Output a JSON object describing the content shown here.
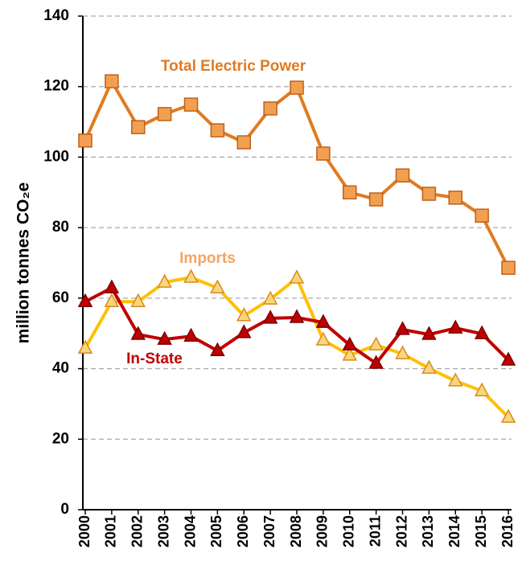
{
  "chart_data": {
    "type": "line",
    "y_label": "million tonnes CO₂e",
    "categories": [
      "2000",
      "2001",
      "2002",
      "2003",
      "2004",
      "2005",
      "2006",
      "2007",
      "2008",
      "2009",
      "2010",
      "2011",
      "2012",
      "2013",
      "2014",
      "2015",
      "2016"
    ],
    "series": [
      {
        "name": "Total Electric Power",
        "color": "#e07b20",
        "marker": "square",
        "values": [
          104.7,
          121.5,
          108.5,
          112.2,
          114.9,
          107.6,
          104.2,
          113.8,
          119.7,
          101,
          90,
          88,
          94.8,
          89.6,
          88.5,
          83.4,
          68.6
        ]
      },
      {
        "name": "Imports",
        "color": "#ffc000",
        "marker": "triangle",
        "values": [
          45.8,
          59,
          59,
          64.5,
          65.9,
          62.9,
          55,
          59.7,
          65.7,
          48.1,
          43.8,
          46.7,
          44.2,
          40.1,
          36.5,
          33.7,
          26.2
        ]
      },
      {
        "name": "In-State",
        "color": "#c00000",
        "marker": "triangle",
        "values": [
          59,
          62.9,
          49.7,
          48.3,
          49.2,
          45.1,
          50.2,
          54.3,
          54.5,
          53.1,
          46.7,
          41.5,
          51.1,
          49.7,
          51.5,
          49.9,
          42.4
        ]
      }
    ],
    "ylim": [
      0,
      140
    ],
    "yticks": [
      0,
      20,
      40,
      60,
      80,
      100,
      120,
      140
    ],
    "grid": true
  }
}
